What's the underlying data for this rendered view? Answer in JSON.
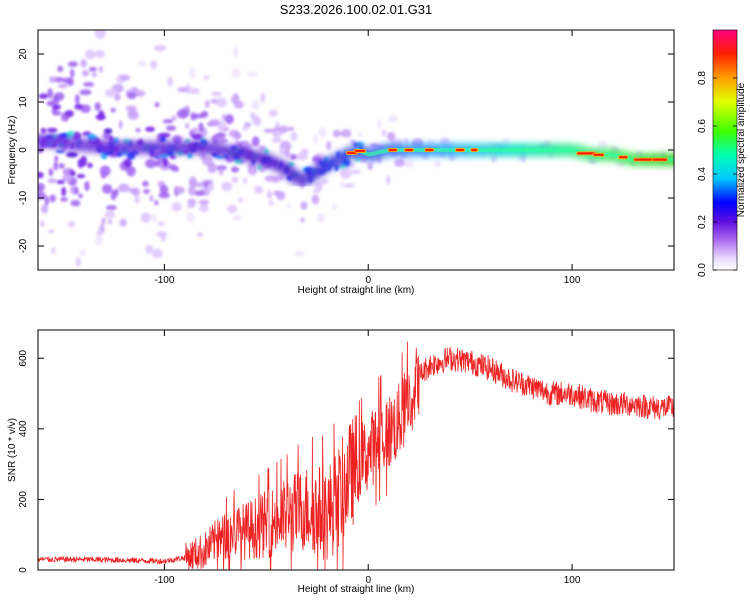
{
  "title": "S233.2026.100.02.01.G31",
  "colors": {
    "axis": "#000000",
    "snr_line": "#ee2222",
    "plot_bg": "#ffffff"
  },
  "chart_data": [
    {
      "type": "heatmap",
      "name": "spectrogram",
      "xlabel": "Height of straight line (km)",
      "ylabel": "Frequency (Hz)",
      "xlim": [
        -162,
        150
      ],
      "ylim": [
        -25,
        25
      ],
      "xticks": [
        -100,
        0,
        100
      ],
      "xtick_labels": [
        "-100",
        "0",
        "100"
      ],
      "yticks": [
        -20,
        -10,
        0,
        10,
        20
      ],
      "ytick_labels": [
        "-20",
        "-10",
        "0",
        "10",
        "20"
      ],
      "ridge": {
        "x": [
          -160,
          -140,
          -120,
          -100,
          -80,
          -60,
          -50,
          -40,
          -35,
          -30,
          -20,
          -10,
          -5,
          0,
          10,
          20,
          40,
          60,
          80,
          100,
          110,
          120,
          130,
          140,
          148
        ],
        "y": [
          2,
          1,
          0.5,
          0.5,
          0.5,
          -1,
          -2,
          -4,
          -6,
          -6,
          -3,
          -1,
          0,
          -1,
          0,
          0,
          0,
          0,
          0,
          0,
          -1,
          -1,
          -2,
          -2,
          -2
        ]
      },
      "colorbar": {
        "label": "Normalized spectral amplitude",
        "range": [
          0.0,
          1.0
        ],
        "ticks": [
          0.0,
          0.2,
          0.4,
          0.6,
          0.8
        ],
        "tick_labels": [
          "0.0",
          "0.2",
          "0.4",
          "0.6",
          "0.8"
        ]
      }
    },
    {
      "type": "line",
      "name": "snr",
      "xlabel": "Height of straight line (km)",
      "ylabel": "SNR (10 * v/v)",
      "xlim": [
        -162,
        150
      ],
      "ylim": [
        0,
        680
      ],
      "xticks": [
        -100,
        0,
        100
      ],
      "xtick_labels": [
        "-100",
        "0",
        "100"
      ],
      "yticks": [
        0,
        200,
        400,
        600
      ],
      "ytick_labels": [
        "0",
        "200",
        "400",
        "600"
      ],
      "series": [
        {
          "name": "SNR",
          "x": [
            -162,
            -140,
            -120,
            -100,
            -90,
            -80,
            -75,
            -70,
            -65,
            -60,
            -55,
            -50,
            -45,
            -40,
            -35,
            -30,
            -25,
            -20,
            -15,
            -10,
            -5,
            0,
            5,
            10,
            15,
            20,
            25,
            30,
            40,
            50,
            60,
            70,
            80,
            90,
            100,
            110,
            120,
            130,
            140,
            150
          ],
          "y": [
            30,
            30,
            28,
            25,
            35,
            55,
            80,
            95,
            110,
            110,
            120,
            130,
            140,
            150,
            165,
            175,
            170,
            160,
            200,
            260,
            300,
            330,
            370,
            390,
            420,
            480,
            550,
            580,
            600,
            590,
            570,
            540,
            520,
            500,
            500,
            480,
            470,
            470,
            460,
            460
          ]
        }
      ]
    }
  ]
}
